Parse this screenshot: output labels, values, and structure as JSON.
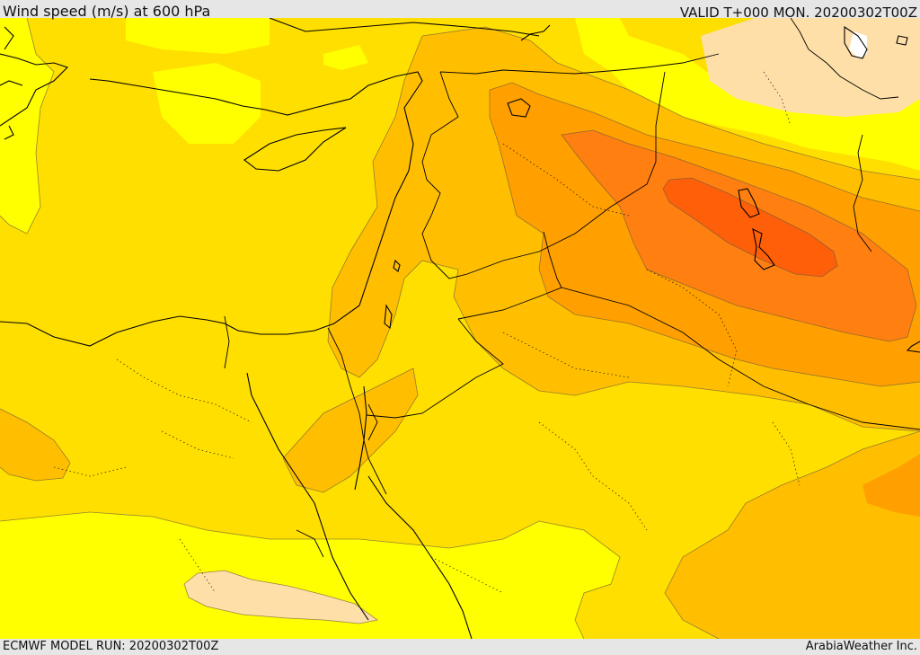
{
  "header": {
    "title": "Wind speed (m/s) at 600 hPa",
    "valid": "VALID T+000 MON. 20200302T00Z"
  },
  "footer": {
    "model_run": "ECMWF MODEL RUN: 20200302T00Z",
    "credit": "ArabiaWeather Inc."
  },
  "colors": {
    "band_light": "#ffdfa8",
    "band_yellow": "#ffff00",
    "band_gold": "#ffdf00",
    "band_amber": "#ffbf00",
    "band_orange": "#ff9f00",
    "band_dark_orange": "#ff7f10",
    "band_red_orange": "#ff5f08"
  }
}
